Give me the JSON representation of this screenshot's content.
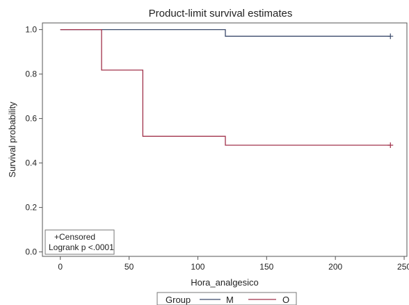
{
  "chart_data": {
    "type": "line",
    "title": "Product-limit survival estimates",
    "xlabel": "Hora_analgesico",
    "ylabel": "Survival probability",
    "xlim": [
      -13,
      252
    ],
    "ylim": [
      -0.02,
      1.03
    ],
    "xticks": [
      0,
      50,
      100,
      150,
      200,
      250
    ],
    "yticks": [
      0.0,
      0.2,
      0.4,
      0.6,
      0.8,
      1.0
    ],
    "xtick_labels": [
      "0",
      "50",
      "100",
      "150",
      "200",
      "250"
    ],
    "ytick_labels": [
      "0.0",
      "0.2",
      "0.4",
      "0.6",
      "0.8",
      "1.0"
    ],
    "grid": false,
    "step": true,
    "legend": {
      "title": "Group",
      "placement": "bottom"
    },
    "series": [
      {
        "name": "M",
        "color": "#3b4a6b",
        "x": [
          0,
          120,
          240
        ],
        "y": [
          1.0,
          0.97,
          0.97
        ],
        "censored": [
          [
            240,
            0.97
          ]
        ]
      },
      {
        "name": "O",
        "color": "#a0314a",
        "x": [
          0,
          30,
          60,
          120,
          240
        ],
        "y": [
          1.0,
          0.818,
          0.52,
          0.48,
          0.48
        ],
        "censored": [
          [
            240,
            0.48
          ]
        ]
      }
    ],
    "annotations": {
      "censored_label": "+Censored",
      "test_label": "Logrank p <.0001"
    }
  }
}
